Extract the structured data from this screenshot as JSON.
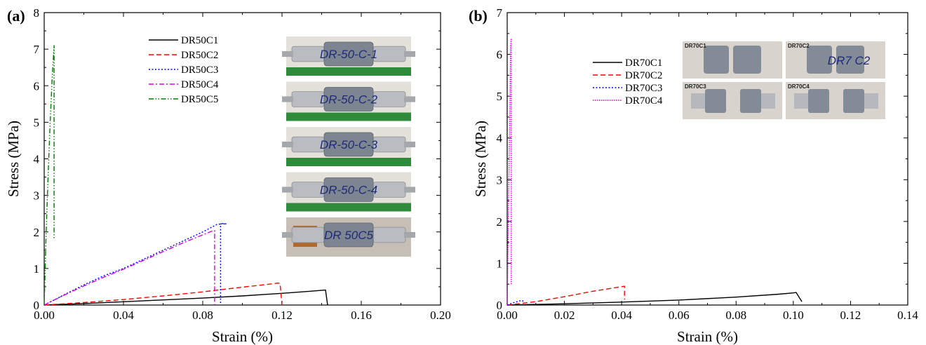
{
  "chart_data": [
    {
      "panel_label": "(a)",
      "type": "line",
      "xlabel": "Strain (%)",
      "ylabel": "Stress (MPa)",
      "xlim": [
        0,
        0.2
      ],
      "ylim": [
        0,
        8
      ],
      "xticks": [
        "0.00",
        "0.04",
        "0.08",
        "0.12",
        "0.16",
        "0.20"
      ],
      "yticks": [
        "0",
        "1",
        "2",
        "3",
        "4",
        "5",
        "6",
        "7",
        "8"
      ],
      "legend_position": "top-center",
      "series": [
        {
          "name": "DR50C1",
          "color": "#000000",
          "dash": "solid",
          "x": [
            0,
            0.02,
            0.04,
            0.06,
            0.08,
            0.1,
            0.12,
            0.135,
            0.142,
            0.142,
            0.143
          ],
          "y": [
            0,
            0.04,
            0.09,
            0.14,
            0.19,
            0.25,
            0.32,
            0.38,
            0.41,
            0.4,
            0.0
          ]
        },
        {
          "name": "DR50C2",
          "color": "#ff0000",
          "dash": "dashed",
          "x": [
            0,
            0.02,
            0.04,
            0.06,
            0.08,
            0.1,
            0.115,
            0.118,
            0.119,
            0.12
          ],
          "y": [
            0,
            0.07,
            0.15,
            0.25,
            0.36,
            0.49,
            0.58,
            0.6,
            0.59,
            0.0
          ]
        },
        {
          "name": "DR50C3",
          "color": "#0000ff",
          "dash": "dotted",
          "x": [
            0,
            0.01,
            0.02,
            0.03,
            0.04,
            0.05,
            0.06,
            0.07,
            0.08,
            0.087,
            0.09,
            0.092,
            0.089,
            0.089
          ],
          "y": [
            0,
            0.28,
            0.55,
            0.8,
            1.0,
            1.25,
            1.5,
            1.75,
            2.0,
            2.2,
            2.23,
            2.22,
            2.22,
            0.0
          ]
        },
        {
          "name": "DR50C4",
          "color": "#e000e0",
          "dash": "dashdot",
          "x": [
            0,
            0.01,
            0.02,
            0.03,
            0.04,
            0.05,
            0.06,
            0.07,
            0.08,
            0.085,
            0.086,
            0.086
          ],
          "y": [
            0,
            0.27,
            0.52,
            0.76,
            0.98,
            1.22,
            1.46,
            1.7,
            1.92,
            2.03,
            2.04,
            0.0
          ]
        },
        {
          "name": "DR50C5",
          "color": "#008000",
          "dash": "dashdotdot",
          "x": [
            0,
            0.001,
            0.002,
            0.003,
            0.004,
            0.005,
            0.005,
            0.005
          ],
          "y": [
            0,
            2.0,
            3.6,
            5.0,
            6.2,
            7.1,
            6.5,
            1.8
          ]
        }
      ]
    },
    {
      "panel_label": "(b)",
      "type": "line",
      "xlabel": "Strain (%)",
      "ylabel": "Stress (MPa)",
      "xlim": [
        0,
        0.14
      ],
      "ylim": [
        0,
        7
      ],
      "xticks": [
        "0.00",
        "0.02",
        "0.04",
        "0.06",
        "0.08",
        "0.10",
        "0.12",
        "0.14"
      ],
      "yticks": [
        "0",
        "1",
        "2",
        "3",
        "4",
        "5",
        "6",
        "7"
      ],
      "legend_position": "top-center",
      "series": [
        {
          "name": "DR70C1",
          "color": "#000000",
          "dash": "solid",
          "x": [
            0,
            0.02,
            0.04,
            0.06,
            0.08,
            0.095,
            0.1,
            0.101,
            0.103
          ],
          "y": [
            0,
            0.03,
            0.07,
            0.12,
            0.19,
            0.26,
            0.29,
            0.3,
            0.08
          ]
        },
        {
          "name": "DR70C2",
          "color": "#ff0000",
          "dash": "dashed",
          "x": [
            0,
            0.01,
            0.02,
            0.03,
            0.04,
            0.041,
            0.041
          ],
          "y": [
            0,
            0.08,
            0.2,
            0.33,
            0.44,
            0.45,
            0.13
          ]
        },
        {
          "name": "DR70C3",
          "color": "#0000ff",
          "dash": "dotted",
          "x": [
            0,
            0.002,
            0.004,
            0.005,
            0.006
          ],
          "y": [
            0,
            0.05,
            0.09,
            0.11,
            0.08
          ]
        },
        {
          "name": "DR70C4",
          "color": "#e000e0",
          "dash": "dense-dotted",
          "x": [
            0,
            0.0005,
            0.001,
            0.0012,
            0.0014,
            0.0014
          ],
          "y": [
            0,
            2.5,
            5.0,
            6.2,
            6.38,
            0.5
          ]
        }
      ]
    }
  ],
  "photos_a": [
    {
      "text": "DR-50-C-1"
    },
    {
      "text": "DR-50-C-2"
    },
    {
      "text": "DR-50-C-3"
    },
    {
      "text": "DR-50-C-4"
    },
    {
      "text": "DR 50C5"
    }
  ],
  "photos_b": [
    {
      "label": "DR70C1"
    },
    {
      "label": "DR70C2",
      "text": "DR7 C2"
    },
    {
      "label": "DR70C3"
    },
    {
      "label": "DR70C4"
    }
  ]
}
